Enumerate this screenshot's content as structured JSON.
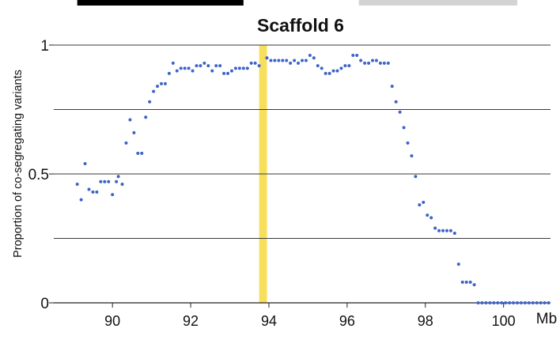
{
  "chart_data": {
    "type": "scatter",
    "title": "Scaffold 6",
    "xlabel": "",
    "ylabel": "Proportion of co-segregating  variants",
    "x_unit": "Mb",
    "xlim": [
      88.5,
      101.2
    ],
    "ylim": [
      0,
      1
    ],
    "x_ticks": [
      90,
      92,
      94,
      96,
      98,
      100
    ],
    "x_tick_labels": [
      "90",
      "92",
      "94",
      "96",
      "98",
      "100"
    ],
    "y_ticks": [
      0,
      0.5,
      1
    ],
    "y_tick_labels": [
      "0",
      "0.5",
      "1"
    ],
    "gridlines_y": [
      0.25,
      0.5,
      0.75,
      1
    ],
    "grid": true,
    "legend": "none",
    "highlight_band": {
      "x_range": [
        93.75,
        93.95
      ],
      "color": "#f7df5c"
    },
    "top_bars": [
      {
        "x_range": [
          89.1,
          93.35
        ],
        "color": "#000000"
      },
      {
        "x_range": [
          96.3,
          100.35
        ],
        "color": "#d3d3d3"
      }
    ],
    "point_color": "#3d64c7",
    "series": [
      {
        "points": [
          [
            89.1,
            0.46
          ],
          [
            89.2,
            0.4
          ],
          [
            89.3,
            0.54
          ],
          [
            89.4,
            0.44
          ],
          [
            89.5,
            0.43
          ],
          [
            89.6,
            0.43
          ],
          [
            89.7,
            0.47
          ],
          [
            89.8,
            0.47
          ],
          [
            89.9,
            0.47
          ],
          [
            90.0,
            0.42
          ],
          [
            90.1,
            0.47
          ],
          [
            90.15,
            0.49
          ],
          [
            90.25,
            0.46
          ],
          [
            90.35,
            0.62
          ],
          [
            90.45,
            0.71
          ],
          [
            90.55,
            0.66
          ],
          [
            90.65,
            0.58
          ],
          [
            90.75,
            0.58
          ],
          [
            90.85,
            0.72
          ],
          [
            90.95,
            0.78
          ],
          [
            91.05,
            0.82
          ],
          [
            91.15,
            0.84
          ],
          [
            91.25,
            0.85
          ],
          [
            91.35,
            0.85
          ],
          [
            91.45,
            0.89
          ],
          [
            91.55,
            0.93
          ],
          [
            91.65,
            0.9
          ],
          [
            91.75,
            0.91
          ],
          [
            91.85,
            0.91
          ],
          [
            91.95,
            0.91
          ],
          [
            92.05,
            0.9
          ],
          [
            92.15,
            0.92
          ],
          [
            92.25,
            0.92
          ],
          [
            92.35,
            0.93
          ],
          [
            92.45,
            0.92
          ],
          [
            92.55,
            0.9
          ],
          [
            92.65,
            0.92
          ],
          [
            92.75,
            0.92
          ],
          [
            92.85,
            0.89
          ],
          [
            92.95,
            0.89
          ],
          [
            93.05,
            0.9
          ],
          [
            93.15,
            0.91
          ],
          [
            93.25,
            0.91
          ],
          [
            93.35,
            0.91
          ],
          [
            93.45,
            0.91
          ],
          [
            93.55,
            0.93
          ],
          [
            93.65,
            0.93
          ],
          [
            93.75,
            0.92
          ],
          [
            93.95,
            0.95
          ],
          [
            94.05,
            0.94
          ],
          [
            94.15,
            0.94
          ],
          [
            94.25,
            0.94
          ],
          [
            94.35,
            0.94
          ],
          [
            94.45,
            0.94
          ],
          [
            94.55,
            0.93
          ],
          [
            94.65,
            0.94
          ],
          [
            94.75,
            0.93
          ],
          [
            94.85,
            0.94
          ],
          [
            94.95,
            0.94
          ],
          [
            95.05,
            0.96
          ],
          [
            95.15,
            0.95
          ],
          [
            95.25,
            0.92
          ],
          [
            95.35,
            0.91
          ],
          [
            95.45,
            0.89
          ],
          [
            95.55,
            0.89
          ],
          [
            95.65,
            0.9
          ],
          [
            95.75,
            0.9
          ],
          [
            95.85,
            0.91
          ],
          [
            95.95,
            0.92
          ],
          [
            96.05,
            0.92
          ],
          [
            96.15,
            0.96
          ],
          [
            96.25,
            0.96
          ],
          [
            96.35,
            0.94
          ],
          [
            96.45,
            0.93
          ],
          [
            96.55,
            0.93
          ],
          [
            96.65,
            0.94
          ],
          [
            96.75,
            0.94
          ],
          [
            96.85,
            0.93
          ],
          [
            96.95,
            0.93
          ],
          [
            97.05,
            0.93
          ],
          [
            97.15,
            0.84
          ],
          [
            97.25,
            0.78
          ],
          [
            97.35,
            0.74
          ],
          [
            97.45,
            0.68
          ],
          [
            97.55,
            0.62
          ],
          [
            97.65,
            0.57
          ],
          [
            97.75,
            0.49
          ],
          [
            97.85,
            0.38
          ],
          [
            97.95,
            0.39
          ],
          [
            98.05,
            0.34
          ],
          [
            98.15,
            0.33
          ],
          [
            98.25,
            0.29
          ],
          [
            98.35,
            0.28
          ],
          [
            98.45,
            0.28
          ],
          [
            98.55,
            0.28
          ],
          [
            98.65,
            0.28
          ],
          [
            98.75,
            0.27
          ],
          [
            98.85,
            0.15
          ],
          [
            98.95,
            0.08
          ],
          [
            99.05,
            0.08
          ],
          [
            99.15,
            0.08
          ],
          [
            99.25,
            0.07
          ],
          [
            99.35,
            0.0
          ],
          [
            99.45,
            0.0
          ],
          [
            99.55,
            0.0
          ],
          [
            99.65,
            0.0
          ],
          [
            99.75,
            0.0
          ],
          [
            99.85,
            0.0
          ],
          [
            99.95,
            0.0
          ],
          [
            100.05,
            0.0
          ],
          [
            100.15,
            0.0
          ],
          [
            100.25,
            0.0
          ],
          [
            100.35,
            0.0
          ],
          [
            100.45,
            0.0
          ],
          [
            100.55,
            0.0
          ],
          [
            100.65,
            0.0
          ],
          [
            100.75,
            0.0
          ],
          [
            100.85,
            0.0
          ],
          [
            100.95,
            0.0
          ],
          [
            101.05,
            0.0
          ],
          [
            101.15,
            0.0
          ]
        ]
      }
    ]
  }
}
